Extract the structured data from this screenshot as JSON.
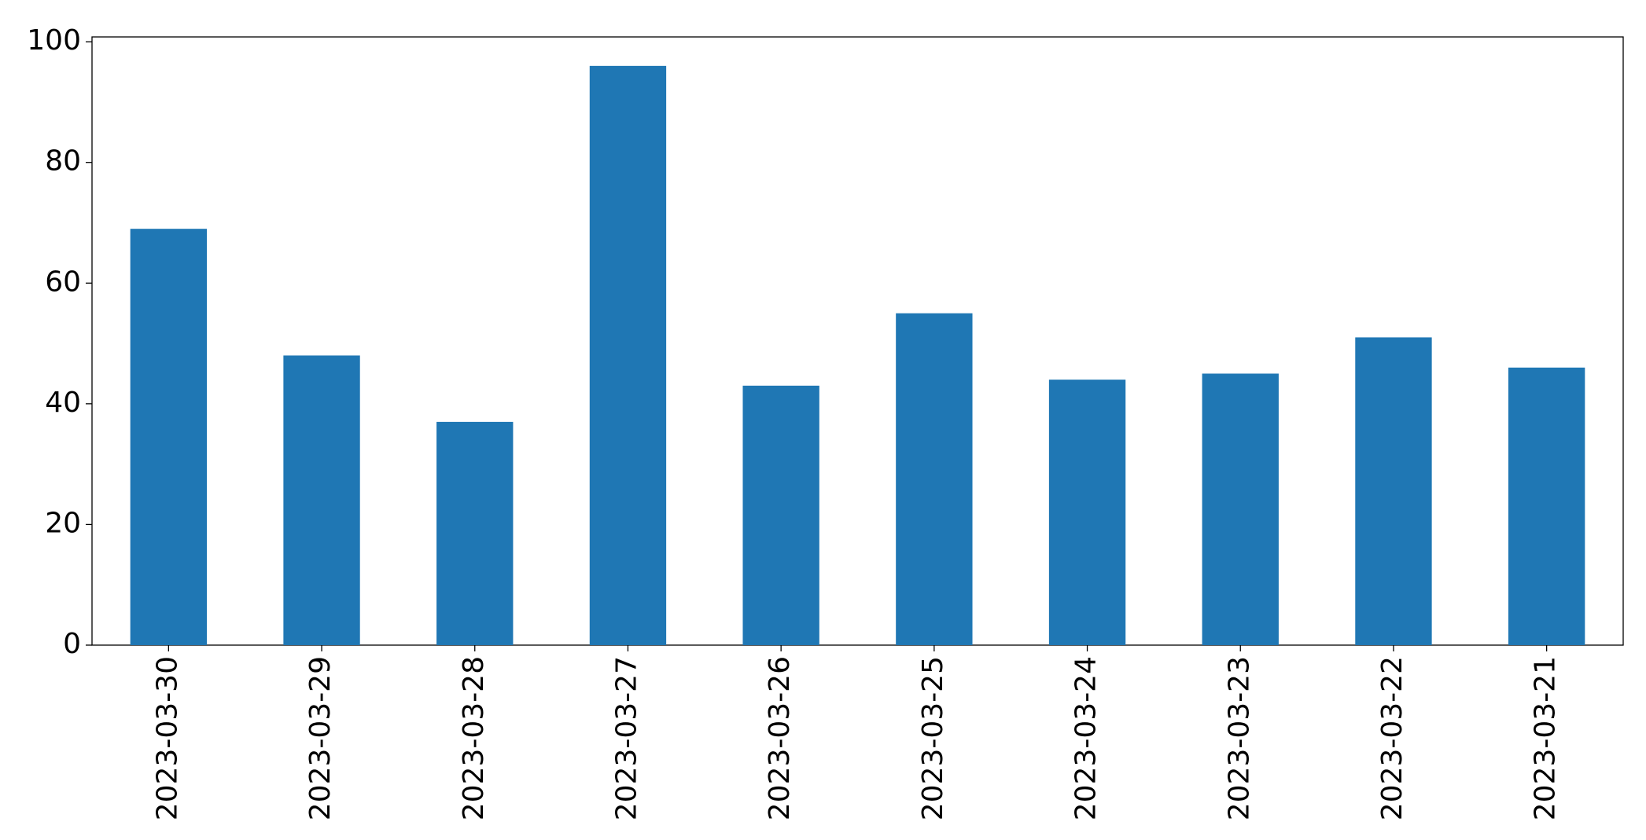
{
  "chart_data": {
    "type": "bar",
    "categories": [
      "2023-03-30",
      "2023-03-29",
      "2023-03-28",
      "2023-03-27",
      "2023-03-26",
      "2023-03-25",
      "2023-03-24",
      "2023-03-23",
      "2023-03-22",
      "2023-03-21"
    ],
    "values": [
      69,
      48,
      37,
      96,
      43,
      55,
      44,
      45,
      51,
      46
    ],
    "color": "#1f77b4",
    "ylim": [
      0,
      100.8
    ],
    "yticks": [
      0,
      20,
      40,
      60,
      80,
      100
    ],
    "grid": false
  }
}
